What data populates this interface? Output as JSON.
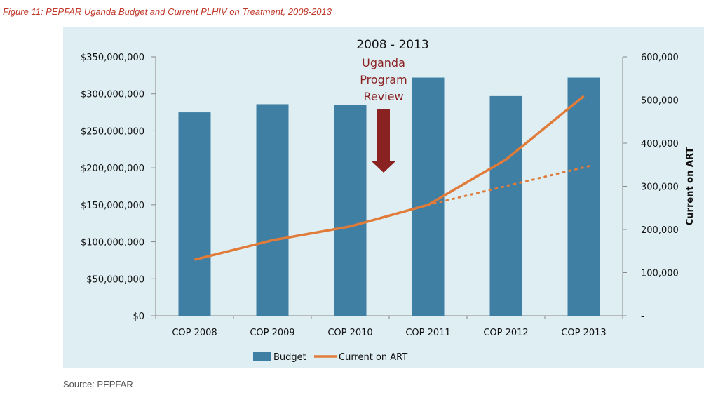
{
  "figure": {
    "caption": "Figure 11: PEPFAR Uganda Budget and Current PLHIV on Treatment, 2008-2013",
    "source": "Source: PEPFAR"
  },
  "chart_data": {
    "type": "bar",
    "title": "2008 - 2013",
    "categories": [
      "COP 2008",
      "COP 2009",
      "COP 2010",
      "COP 2011",
      "COP 2012",
      "COP 2013"
    ],
    "left_axis": {
      "label": "",
      "min": 0,
      "max": 350000000,
      "ticks": [
        0,
        50000000,
        100000000,
        150000000,
        200000000,
        250000000,
        300000000,
        350000000
      ],
      "tick_labels": [
        "$0",
        "$50,000,000",
        "$100,000,000",
        "$150,000,000",
        "$200,000,000",
        "$250,000,000",
        "$300,000,000",
        "$350,000,000"
      ]
    },
    "right_axis": {
      "label": "Current on ART",
      "min": 0,
      "max": 600000,
      "ticks": [
        0,
        100000,
        200000,
        300000,
        400000,
        500000,
        600000
      ],
      "tick_labels": [
        "-",
        "100,000",
        "200,000",
        "300,000",
        "400,000",
        "500,000",
        "600,000"
      ]
    },
    "series": [
      {
        "name": "Budget",
        "type": "bar",
        "axis": "left",
        "color": "#3f7fa3",
        "values": [
          275000000,
          286000000,
          285000000,
          322000000,
          297000000,
          322000000
        ]
      },
      {
        "name": "Current on ART",
        "type": "line",
        "axis": "right",
        "color": "#e07b39",
        "values": [
          130000,
          175000,
          207000,
          257000,
          362000,
          509000
        ]
      },
      {
        "name": "",
        "type": "dotted-line",
        "axis": "right",
        "color": "#e07b39",
        "x": [
          "COP 2011",
          "COP 2013"
        ],
        "values": [
          257000,
          347000
        ]
      }
    ],
    "annotation": {
      "text": [
        "Uganda",
        "Program",
        "Review"
      ],
      "color": "#8b2222",
      "category": "COP 2010"
    },
    "legend_position": "bottom",
    "grid": false
  }
}
